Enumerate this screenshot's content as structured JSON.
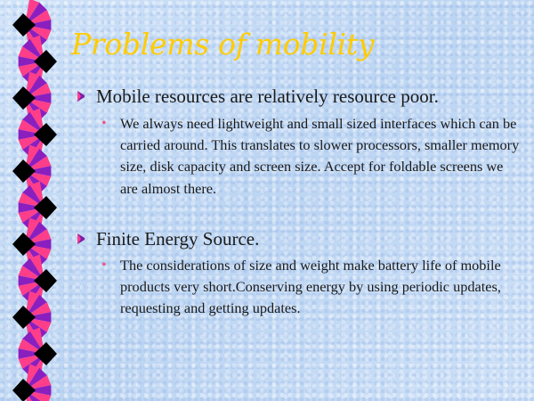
{
  "slide": {
    "title": "Problems of mobility",
    "bullets": [
      {
        "text": "Mobile resources are relatively resource poor.",
        "sub": "We always need lightweight and small sized interfaces which can be carried around. This translates to slower processors, smaller memory size, disk capacity and screen size. Accept for foldable screens we are almost there."
      },
      {
        "text": "Finite Energy Source.",
        "sub": "The considerations of size and weight make battery life of mobile products very short.Conserving energy by using periodic updates, requesting and getting updates."
      }
    ]
  },
  "colors": {
    "background": "#c6dcf6",
    "title": "#ffcc00",
    "sub_bullet": "#e85a8a",
    "fan_pink": "#ff3e8a",
    "fan_purple": "#8a1fc0",
    "fan_black": "#000000"
  },
  "icons": {
    "bullet": "wing-bullet-icon",
    "sub_bullet": "dot",
    "border": "fan-border-decoration"
  }
}
